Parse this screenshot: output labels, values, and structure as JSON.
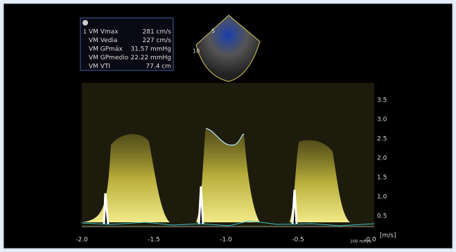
{
  "measurements": {
    "marker": "1",
    "rows": [
      [
        "VM Vmax",
        "281 cm/s"
      ],
      [
        "VM Vedia",
        "227 cm/s"
      ],
      [
        "VM GPmáx",
        "31.57 mmHg"
      ],
      [
        "VM GPmedio",
        "22.22 mmHg"
      ],
      [
        "VM VTI",
        "77.4 cm"
      ]
    ]
  },
  "sector": {
    "depth_labels": [
      "5",
      "10"
    ]
  },
  "velocity_scale": {
    "labels": [
      "3.5",
      "3.0",
      "2.5",
      "2.0",
      "1.5",
      "1.0",
      "0.5"
    ],
    "unit": "[m/s]"
  },
  "time_scale": {
    "labels": [
      "-2.0",
      "-1.5",
      "-1.0",
      "-0.5",
      "-0.0"
    ],
    "sweep": "100 mm/s"
  }
}
